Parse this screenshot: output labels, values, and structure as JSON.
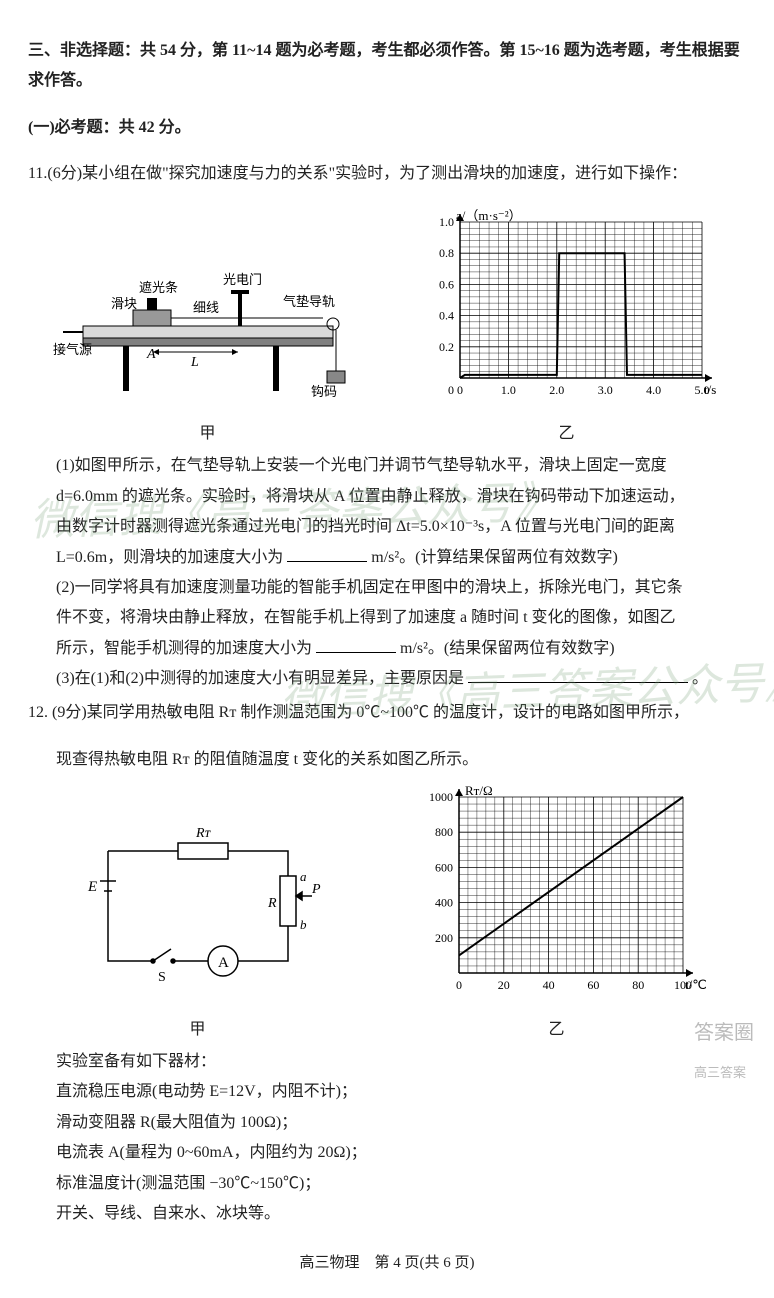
{
  "header": {
    "section_title": "三、非选择题：共 54 分，第 11~14 题为必考题，考生都必须作答。第 15~16 题为选考题，考生根据要求作答。",
    "part1": "(一)必考题：共 42 分。"
  },
  "q11": {
    "stem": "11.(6分)某小组在做\"探究加速度与力的关系\"实验时，为了测出滑块的加速度，进行如下操作：",
    "apparatus": {
      "labels": {
        "shade": "遮光条",
        "slider": "滑块",
        "thread": "细线",
        "photogate": "光电门",
        "airtrack": "气垫导轨",
        "air_source": "接气源",
        "hook": "钩码",
        "A": "A",
        "L": "L"
      },
      "caption": "甲"
    },
    "graph1": {
      "ylabel": "a/（m·s⁻²）",
      "xlabel": "t/s",
      "xticks": [
        "0",
        "1.0",
        "2.0",
        "3.0",
        "4.0",
        "5.0"
      ],
      "yticks": [
        "0.2",
        "0.4",
        "0.6",
        "0.8",
        "1.0"
      ],
      "xlim": [
        0,
        5
      ],
      "ylim": [
        0,
        1.0
      ],
      "data_x": [
        0,
        0.1,
        2.0,
        2.05,
        3.4,
        3.45,
        5.0
      ],
      "data_y": [
        0,
        0.02,
        0.02,
        0.8,
        0.8,
        0.02,
        0.02
      ],
      "line_color": "#000000",
      "grid_color": "#000000",
      "bg_color": "#ffffff",
      "caption": "乙"
    },
    "p1a": "(1)如图甲所示，在气垫导轨上安装一个光电门并调节气垫导轨水平，滑块上固定一宽度",
    "p1b": "d=6.0mm 的遮光条。实验时，将滑块从 A 位置由静止释放，滑块在钩码带动下加速运动，",
    "p1c": "由数字计时器测得遮光条通过光电门的挡光时间 Δt=5.0×10⁻³s，A 位置与光电门间的距离",
    "p1d_pre": "L=0.6m，则滑块的加速度大小为",
    "p1d_post": "m/s²。(计算结果保留两位有效数字)",
    "p2a": "(2)一同学将具有加速度测量功能的智能手机固定在甲图中的滑块上，拆除光电门，其它条",
    "p2b": "件不变，将滑块由静止释放，在智能手机上得到了加速度 a 随时间 t 变化的图像，如图乙",
    "p2c_pre": "所示，智能手机测得的加速度大小为",
    "p2c_post": "m/s²。(结果保留两位有效数字)",
    "p3_pre": "(3)在(1)和(2)中测得的加速度大小有明显差异，主要原因是",
    "p3_post": "。"
  },
  "q12": {
    "stem_a": "12. (9分)某同学用热敏电阻 Rᴛ 制作测温范围为 0℃~100℃ 的温度计，设计的电路如图甲所示，",
    "stem_b": "现查得热敏电阻 Rᴛ 的阻值随温度 t 变化的关系如图乙所示。",
    "circuit": {
      "labels": {
        "E": "E",
        "S": "S",
        "A": "A",
        "RT": "Rᴛ",
        "R": "R",
        "a": "a",
        "b": "b",
        "P": "P"
      },
      "caption": "甲"
    },
    "graph2": {
      "ylabel": "Rᴛ/Ω",
      "xlabel": "t/℃",
      "xticks": [
        "0",
        "20",
        "40",
        "60",
        "80",
        "100"
      ],
      "yticks": [
        "200",
        "400",
        "600",
        "800",
        "1000"
      ],
      "xlim": [
        0,
        100
      ],
      "ylim": [
        0,
        1000
      ],
      "line_x": [
        0,
        100
      ],
      "line_y": [
        100,
        1000
      ],
      "line_color": "#000000",
      "grid_color": "#000000",
      "caption": "乙"
    },
    "materials_title": "实验室备有如下器材：",
    "m1": "直流稳压电源(电动势 E=12V，内阻不计)；",
    "m2": "滑动变阻器 R(最大阻值为 100Ω)；",
    "m3": "电流表 A(量程为 0~60mA，内阻约为 20Ω)；",
    "m4": "标准温度计(测温范围 −30℃~150℃)；",
    "m5": "开关、导线、自来水、冰块等。"
  },
  "footer": "高三物理　第 4 页(共 6 页)",
  "watermark1": "微信搜《高三答案公众号》",
  "watermark2": "答案圈",
  "watermark3": "高三答案"
}
